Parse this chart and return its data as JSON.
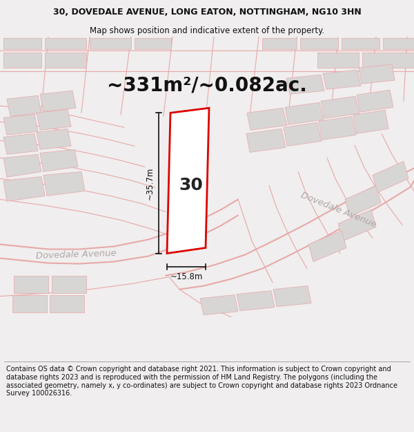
{
  "title_line1": "30, DOVEDALE AVENUE, LONG EATON, NOTTINGHAM, NG10 3HN",
  "title_line2": "Map shows position and indicative extent of the property.",
  "area_text": "~331m²/~0.082ac.",
  "property_number": "30",
  "dim_width": "~15.8m",
  "dim_height": "~35.7m",
  "street_name_left": "Dovedale Avenue",
  "street_name_right": "Dovedale Avenue",
  "footer_text": "Contains OS data © Crown copyright and database right 2021. This information is subject to Crown copyright and database rights 2023 and is reproduced with the permission of HM Land Registry. The polygons (including the associated geometry, namely x, y co-ordinates) are subject to Crown copyright and database rights 2023 Ordnance Survey 100026316.",
  "bg_color": "#f0eeee",
  "map_bg": "#ffffff",
  "plot_color_fill": "#ffffff",
  "plot_color_edge": "#dd0000",
  "neighbor_fill": "#d8d5d5",
  "neighbor_edge": "#e8a8a8",
  "road_line_color": "#e8a8a8",
  "dim_line_color": "#111111",
  "title_fontsize": 9.0,
  "subtitle_fontsize": 8.5,
  "area_fontsize": 20,
  "number_fontsize": 18,
  "dim_fontsize": 8.5,
  "street_fontsize": 9.5,
  "footer_fontsize": 7.0
}
